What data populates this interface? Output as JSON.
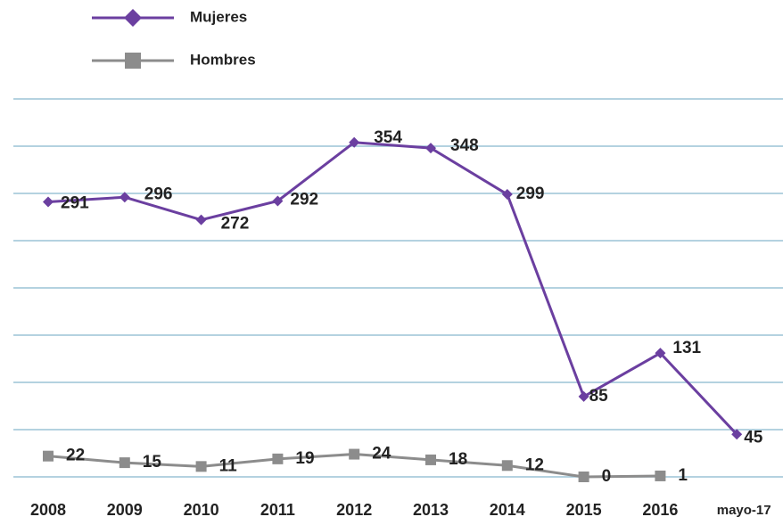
{
  "chart_data": {
    "type": "line",
    "categories": [
      "2008",
      "2009",
      "2010",
      "2011",
      "2012",
      "2013",
      "2014",
      "2015",
      "2016",
      "mayo-17"
    ],
    "series": [
      {
        "name": "Mujeres",
        "color": "#6b3fa0",
        "values": [
          291,
          296,
          272,
          292,
          354,
          348,
          299,
          85,
          131,
          45
        ]
      },
      {
        "name": "Hombres",
        "color": "#8c8c8c",
        "values": [
          22,
          15,
          11,
          19,
          24,
          18,
          12,
          0,
          1,
          null
        ]
      }
    ],
    "ylim": [
      0,
      400
    ],
    "yticks": [
      0,
      50,
      100,
      150,
      200,
      250,
      300,
      350,
      400
    ],
    "grid": true
  }
}
